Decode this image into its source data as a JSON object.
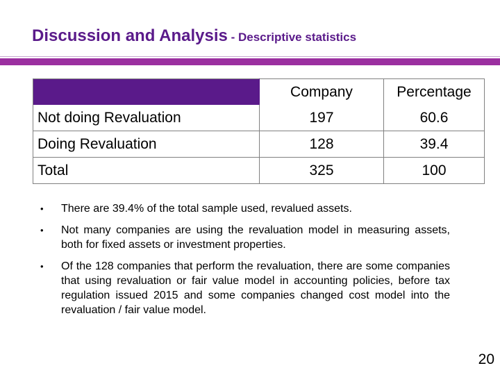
{
  "slide": {
    "title_main": "Discussion and Analysis",
    "title_sub": " - Descriptive statistics",
    "page_number": "20"
  },
  "table": {
    "headers": [
      "",
      "Company",
      "Percentage"
    ],
    "rows": [
      [
        "Not doing Revaluation",
        "197",
        "60.6"
      ],
      [
        "Doing Revaluation",
        "128",
        "39.4"
      ],
      [
        "Total",
        "325",
        "100"
      ]
    ]
  },
  "bullets": [
    "There are 39.4% of the total sample used, revalued assets.",
    "Not many companies are using the revaluation model in measuring assets, both for fixed assets or investment properties.",
    "Of the 128 companies that perform the revaluation, there are some companies that using revaluation or fair value model in accounting policies, before tax regulation issued 2015 and some companies changed cost model into the revaluation / fair value model."
  ],
  "colors": {
    "title": "#5a1a8a",
    "accent_bar": "#9b2fa0",
    "header_fill": "#5a1a8a"
  }
}
